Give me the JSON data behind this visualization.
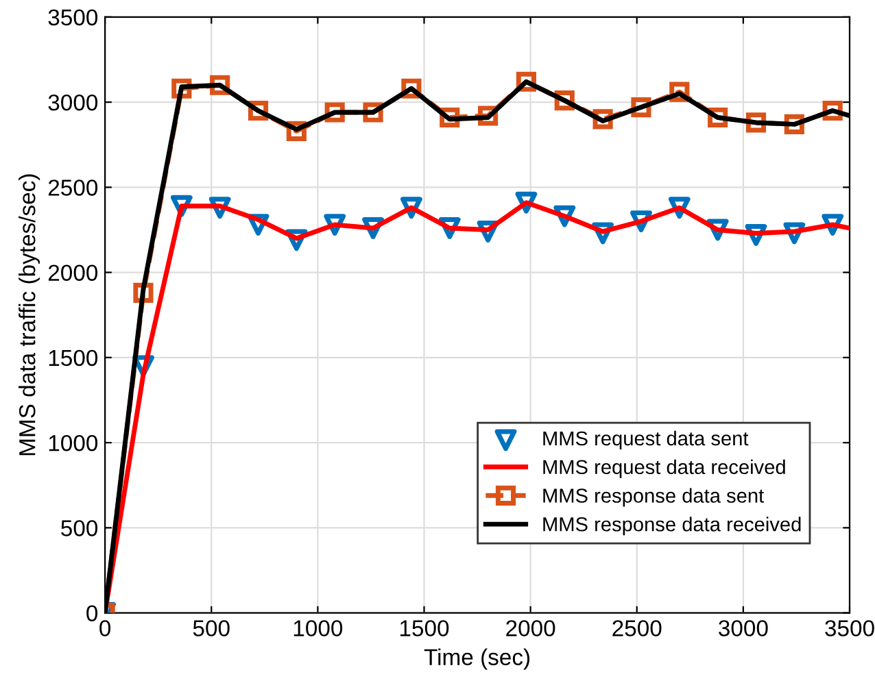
{
  "chart_data": {
    "type": "line",
    "xlabel": "Time (sec)",
    "ylabel": "MMS data traffic (bytes/sec)",
    "xlim": [
      0,
      3500
    ],
    "xticks": [
      0,
      500,
      1000,
      1500,
      2000,
      2500,
      3000,
      3500
    ],
    "ylim": [
      0,
      3500
    ],
    "yticks": [
      0,
      500,
      1000,
      1500,
      2000,
      2500,
      3000,
      3500
    ],
    "grid": true,
    "legend": "bottom right",
    "series": [
      {
        "name": "MMS request data sent",
        "type": "scatter",
        "marker": "triangle",
        "color": "#0072bd",
        "x": [
          0,
          180,
          360,
          540,
          720,
          900,
          1080,
          1260,
          1440,
          1620,
          1800,
          1980,
          2160,
          2340,
          2520,
          2700,
          2880,
          3060,
          3240,
          3420
        ],
        "values": [
          0,
          1450,
          2390,
          2380,
          2280,
          2190,
          2280,
          2260,
          2380,
          2260,
          2240,
          2410,
          2330,
          2230,
          2300,
          2380,
          2250,
          2220,
          2230,
          2280
        ]
      },
      {
        "name": "MMS request data received",
        "marker": "none",
        "line_style": "solid",
        "color": "#ff0000",
        "x": [
          0,
          180,
          360,
          540,
          720,
          900,
          1080,
          1260,
          1440,
          1620,
          1800,
          1980,
          2160,
          2340,
          2520,
          2700,
          2880,
          3060,
          3240,
          3420,
          3500
        ],
        "values": [
          0,
          1400,
          2390,
          2390,
          2310,
          2200,
          2280,
          2260,
          2380,
          2260,
          2250,
          2410,
          2330,
          2240,
          2300,
          2380,
          2250,
          2230,
          2240,
          2280,
          2260
        ]
      },
      {
        "name": "MMS response data sent",
        "marker": "square",
        "line_style": "dashed",
        "color": "#d95319",
        "x": [
          0,
          180,
          360,
          540,
          720,
          900,
          1080,
          1260,
          1440,
          1620,
          1800,
          1980,
          2160,
          2340,
          2520,
          2700,
          2880,
          3060,
          3240,
          3420
        ],
        "values": [
          0,
          1880,
          3080,
          3100,
          2950,
          2830,
          2940,
          2940,
          3080,
          2910,
          2920,
          3120,
          3010,
          2900,
          2970,
          3060,
          2910,
          2880,
          2870,
          2950
        ]
      },
      {
        "name": "MMS response data received",
        "marker": "none",
        "line_style": "solid",
        "color": "#000000",
        "x": [
          0,
          180,
          360,
          540,
          720,
          900,
          1080,
          1260,
          1440,
          1620,
          1800,
          1980,
          2160,
          2340,
          2520,
          2700,
          2880,
          3060,
          3240,
          3420,
          3500
        ],
        "values": [
          0,
          1900,
          3090,
          3100,
          2950,
          2840,
          2940,
          2940,
          3080,
          2900,
          2910,
          3120,
          3010,
          2890,
          2970,
          3050,
          2910,
          2880,
          2870,
          2950,
          2920
        ]
      }
    ]
  }
}
